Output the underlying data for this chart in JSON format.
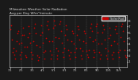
{
  "title": "Milwaukee Weather Solar Radiation",
  "subtitle": "Avg per Day W/m²/minute",
  "background_color": "#1a1a1a",
  "plot_bg_color": "#1a1a1a",
  "dot_color": "#cc0000",
  "grid_color": "#555555",
  "text_color": "#dddddd",
  "legend_color": "#cc0000",
  "legend_label": "Solar Rad.",
  "ylim": [
    0,
    9
  ],
  "yticks": [
    1,
    2,
    3,
    4,
    5,
    6,
    7,
    8
  ],
  "ytick_labels": [
    "1",
    "2",
    "3",
    "4",
    "5",
    "6",
    "7",
    "8"
  ],
  "values": [
    6.5,
    7.2,
    4.8,
    2.5,
    3.2,
    2.1,
    1.5,
    2.8,
    4.5,
    5.8,
    6.2,
    4.0,
    2.2,
    1.5,
    2.5,
    4.2,
    5.5,
    6.8,
    5.5,
    3.5,
    2.0,
    1.8,
    3.5,
    5.2,
    7.0,
    5.8,
    4.2,
    2.5,
    1.5,
    2.2,
    4.5,
    6.8,
    7.5,
    5.8,
    3.8,
    2.0,
    1.2,
    1.8,
    3.5,
    5.5,
    7.2,
    6.0,
    4.2,
    2.5,
    1.5,
    2.8,
    5.0,
    7.2,
    7.8,
    6.5,
    4.5,
    2.8,
    1.5,
    2.2,
    4.5,
    6.8,
    8.0,
    7.2,
    5.2,
    3.2,
    2.0,
    1.5,
    2.8,
    5.0,
    7.5,
    7.8,
    6.2,
    4.2,
    2.5,
    1.8,
    3.2,
    5.5,
    7.2,
    6.5,
    4.8,
    3.0,
    2.0,
    1.5,
    2.5,
    4.5,
    6.2,
    5.8,
    4.0,
    2.5,
    1.8,
    3.2,
    5.5,
    7.0,
    6.5,
    4.8,
    3.2,
    2.0,
    1.5,
    2.8,
    4.5,
    6.2,
    5.8,
    4.2,
    2.8,
    2.2,
    1.8,
    3.0,
    5.2,
    6.8,
    7.5,
    6.2,
    4.5,
    3.0,
    1.8,
    2.5,
    4.8,
    7.0,
    7.5,
    6.0,
    4.0,
    2.5,
    1.5,
    2.2,
    4.0,
    6.0,
    7.2,
    6.5,
    4.8,
    3.2,
    2.0,
    1.5,
    2.8,
    5.0,
    6.8,
    5.5,
    3.8,
    2.2,
    1.5,
    2.5,
    4.5,
    6.5,
    7.0,
    5.8,
    4.0,
    2.5,
    1.8,
    3.0,
    5.2,
    7.0,
    7.5,
    6.2,
    4.5,
    3.0,
    2.0,
    1.8
  ],
  "vgrid_positions": [
    14,
    28,
    42,
    56,
    70,
    84,
    98,
    112,
    126,
    140
  ],
  "xlabel_ticks": [
    0,
    14,
    28,
    42,
    56,
    70,
    84,
    98,
    112,
    126,
    140
  ],
  "xlabel_labels": [
    "1/1",
    "2/1",
    "3/1",
    "4/1",
    "5/1",
    "6/1",
    "7/1",
    "8/1",
    "9/1",
    "10/1",
    "11/1"
  ]
}
